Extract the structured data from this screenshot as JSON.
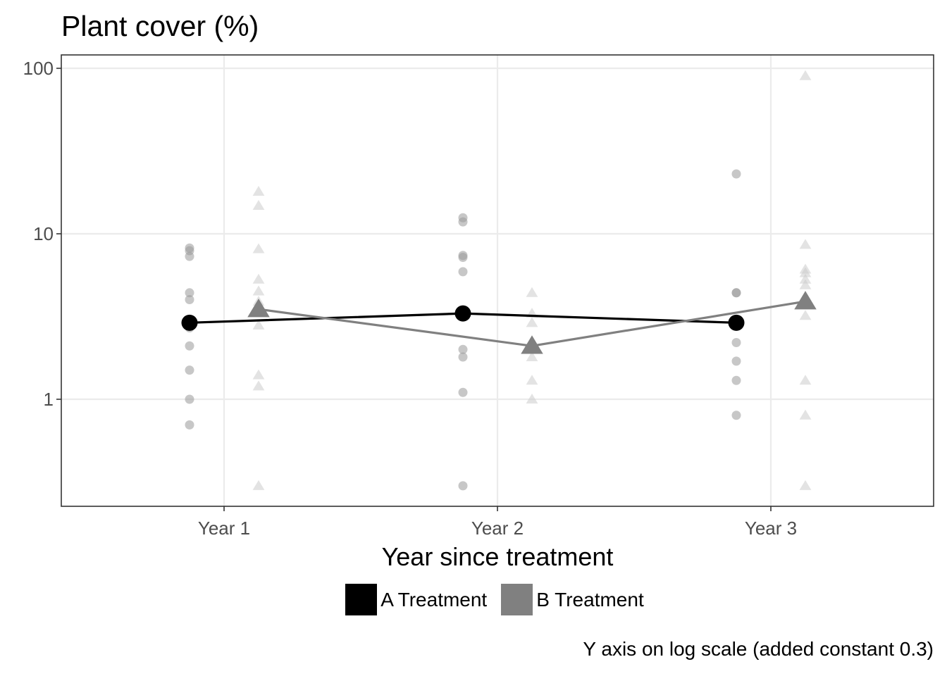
{
  "chart_data": {
    "type": "scatter",
    "title": "Plant cover (%)",
    "xlabel": "Year since treatment",
    "ylabel": "",
    "caption": "Y axis on log scale (added constant 0.3)",
    "y_scale": "log",
    "y_added_constant": 0.3,
    "ylim": [
      0.3,
      120
    ],
    "categories": [
      "Year 1",
      "Year 2",
      "Year 3"
    ],
    "y_ticks": [
      {
        "value": 100,
        "label": "100"
      },
      {
        "value": 10,
        "label": "10"
      },
      {
        "value": 1,
        "label": "1"
      }
    ],
    "grid": true,
    "legend_position": "bottom",
    "series": [
      {
        "name": "A Treatment",
        "color": "#000000",
        "point_color": "#999999",
        "shape": "circle",
        "means": [
          2.9,
          3.3,
          2.9
        ],
        "points": [
          [
            8.2,
            7.9,
            7.3,
            4.4,
            4.0,
            2.7,
            2.1,
            1.5,
            1.0,
            0.7
          ],
          [
            12.5,
            11.8,
            7.4,
            7.2,
            5.9,
            2.0,
            1.8,
            1.1,
            0.3
          ],
          [
            23.0,
            4.4,
            4.4,
            2.2,
            1.7,
            1.3,
            0.8
          ]
        ]
      },
      {
        "name": "B Treatment",
        "color": "#808080",
        "point_color": "#cccccc",
        "shape": "triangle",
        "means": [
          3.5,
          2.1,
          3.9
        ],
        "points": [
          [
            18.0,
            14.8,
            8.1,
            5.3,
            4.5,
            3.9,
            2.8,
            1.4,
            1.2,
            0.3
          ],
          [
            4.4,
            3.3,
            2.9,
            1.8,
            1.3,
            1.0
          ],
          [
            90.0,
            8.6,
            6.1,
            5.8,
            5.3,
            4.9,
            3.2,
            1.3,
            0.8,
            0.3
          ]
        ]
      }
    ]
  }
}
